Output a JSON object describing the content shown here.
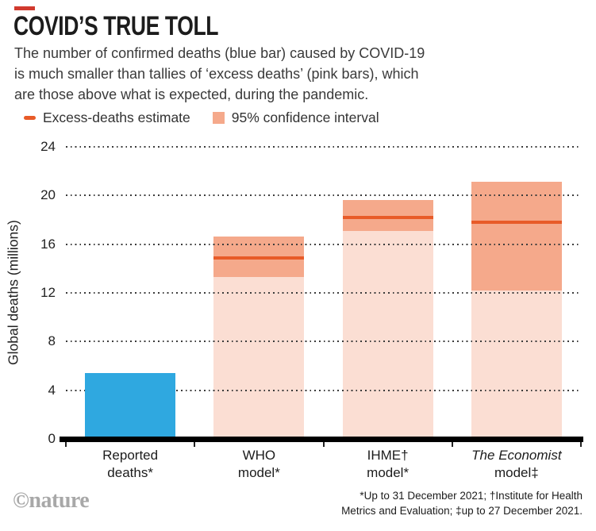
{
  "header": {
    "title": "COVID’S TRUE TOLL",
    "subtitle_lines": [
      "The number of confirmed deaths (blue bar) caused by COVID-19",
      "is much smaller than tallies of ‘excess deaths’ (pink bars), which",
      "are those above what is expected, during the pandemic."
    ]
  },
  "legend": {
    "estimate_label": "Excess-deaths estimate",
    "ci_label": "95% confidence interval"
  },
  "chart_data": {
    "type": "bar",
    "title": "COVID’S TRUE TOLL",
    "ylabel": "Global deaths (millions)",
    "ylim": [
      0,
      24
    ],
    "yticks": [
      24,
      20,
      16,
      12,
      8,
      4,
      0
    ],
    "grid": "horizontal-dotted",
    "legend_position": "top-left",
    "categories": [
      "Reported deaths*",
      "WHO model*",
      "IHME† model*",
      "The Economist model‡"
    ],
    "bars": [
      {
        "label_line1": "Reported",
        "label_line2": "deaths*",
        "kind": "reported",
        "value": 5.4
      },
      {
        "label_line1": "WHO",
        "label_line2": "model*",
        "kind": "excess",
        "estimate": 14.9,
        "ci_low": 13.3,
        "ci_high": 16.6
      },
      {
        "label_line1": "IHME†",
        "label_line2": "model*",
        "kind": "excess",
        "estimate": 18.2,
        "ci_low": 17.1,
        "ci_high": 19.6
      },
      {
        "label_line1": "The Economist",
        "label_line2": "model‡",
        "kind": "excess",
        "estimate": 17.8,
        "ci_low": 12.2,
        "ci_high": 21.1,
        "italic_line1": true
      }
    ]
  },
  "colors": {
    "accent_dash": "#d13a2e",
    "reported_bar": "#2fa8e0",
    "ci_band": "#f5a98b",
    "bar_base": "#fbded3",
    "estimate_line": "#e85b28",
    "grid_dot": "#3b3b3b",
    "nature_gray": "#a8a8a8"
  },
  "footer": {
    "brand": "©nature",
    "footnote_lines": [
      "*Up to 31 December 2021; †Institute for Health",
      "Metrics and Evaluation; ‡up to 27 December 2021."
    ]
  }
}
